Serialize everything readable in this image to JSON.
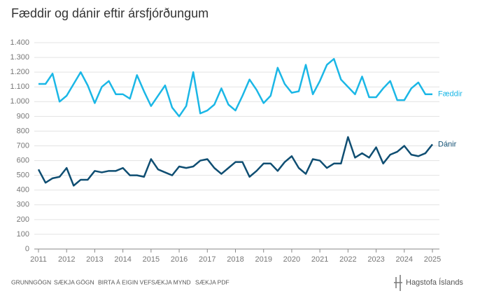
{
  "chart_data": {
    "type": "line",
    "title": "Fæddir og dánir eftir ársfjórðungum",
    "x": [
      2011,
      2011.25,
      2011.5,
      2011.75,
      2012,
      2012.25,
      2012.5,
      2012.75,
      2013,
      2013.25,
      2013.5,
      2013.75,
      2014,
      2014.25,
      2014.5,
      2014.75,
      2015,
      2015.25,
      2015.5,
      2015.75,
      2016,
      2016.25,
      2016.5,
      2016.75,
      2017,
      2017.25,
      2017.5,
      2017.75,
      2018,
      2018.25,
      2018.5,
      2018.75,
      2019,
      2019.25,
      2019.5,
      2019.75,
      2020,
      2020.25,
      2020.5,
      2020.75,
      2021,
      2021.25,
      2021.5,
      2021.75,
      2022,
      2022.25,
      2022.5,
      2022.75,
      2023,
      2023.25,
      2023.5,
      2023.75,
      2024,
      2024.25,
      2024.5,
      2024.75,
      2025
    ],
    "series": [
      {
        "name": "Fæddir",
        "color": "#1bb7e6",
        "values": [
          1120,
          1120,
          1190,
          1000,
          1040,
          1120,
          1200,
          1110,
          990,
          1100,
          1140,
          1050,
          1050,
          1020,
          1180,
          1070,
          970,
          1040,
          1110,
          960,
          900,
          970,
          1200,
          920,
          940,
          980,
          1090,
          980,
          940,
          1040,
          1150,
          1080,
          990,
          1040,
          1230,
          1120,
          1060,
          1070,
          1250,
          1050,
          1140,
          1250,
          1290,
          1150,
          1100,
          1050,
          1170,
          1030,
          1030,
          1090,
          1140,
          1010,
          1010,
          1090,
          1130,
          1050,
          1050
        ]
      },
      {
        "name": "Dánir",
        "color": "#0f4e72",
        "values": [
          540,
          450,
          480,
          490,
          550,
          430,
          470,
          470,
          530,
          520,
          530,
          530,
          550,
          500,
          500,
          490,
          610,
          540,
          520,
          500,
          560,
          550,
          560,
          600,
          610,
          550,
          510,
          550,
          590,
          590,
          490,
          530,
          580,
          580,
          530,
          590,
          630,
          550,
          510,
          610,
          600,
          550,
          580,
          580,
          760,
          620,
          650,
          620,
          690,
          580,
          640,
          660,
          700,
          640,
          630,
          650,
          710
        ]
      }
    ],
    "xlim": [
      2011,
      2025
    ],
    "xticks": [
      2011,
      2012,
      2013,
      2014,
      2015,
      2016,
      2017,
      2018,
      2019,
      2020,
      2021,
      2022,
      2023,
      2024,
      2025
    ],
    "ylim": [
      0,
      1400
    ],
    "yticks": [
      0,
      100,
      200,
      300,
      400,
      500,
      600,
      700,
      800,
      900,
      {
        "value": 1000,
        "label": "1.000"
      },
      {
        "value": 1100,
        "label": "1.100"
      },
      {
        "value": 1200,
        "label": "1.200"
      },
      {
        "value": 1300,
        "label": "1.300"
      },
      {
        "value": 1400,
        "label": "1.400"
      }
    ],
    "grid": true
  },
  "footer": {
    "links": [
      "GRUNNGÖGN",
      "SÆKJA GÖGN",
      "BIRTA Á EIGIN VEF",
      "SÆKJA MYND",
      "SÆKJA PDF"
    ],
    "logo": "Hagstofa Íslands"
  }
}
